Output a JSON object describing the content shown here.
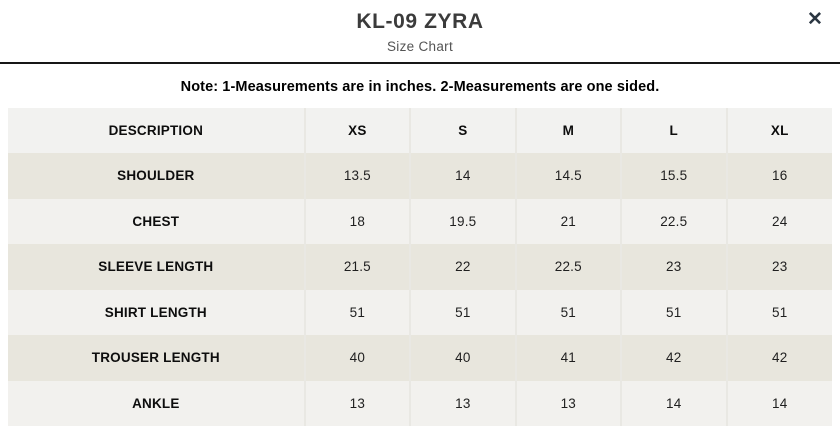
{
  "modal": {
    "title": "KL-09 ZYRA",
    "subtitle": "Size Chart",
    "close_label": "✕"
  },
  "note": "Note: 1-Measurements are in inches. 2-Measurements are one sided.",
  "table": {
    "columns": [
      "DESCRIPTION",
      "XS",
      "S",
      "M",
      "L",
      "XL"
    ],
    "rows": [
      {
        "label": "SHOULDER",
        "values": [
          "13.5",
          "14",
          "14.5",
          "15.5",
          "16"
        ]
      },
      {
        "label": "CHEST",
        "values": [
          "18",
          "19.5",
          "21",
          "22.5",
          "24"
        ]
      },
      {
        "label": "SLEEVE LENGTH",
        "values": [
          "21.5",
          "22",
          "22.5",
          "23",
          "23"
        ]
      },
      {
        "label": "SHIRT LENGTH",
        "values": [
          "51",
          "51",
          "51",
          "51",
          "51"
        ]
      },
      {
        "label": "TROUSER LENGTH",
        "values": [
          "40",
          "40",
          "41",
          "42",
          "42"
        ]
      },
      {
        "label": "ANKLE",
        "values": [
          "13",
          "13",
          "13",
          "14",
          "14"
        ]
      }
    ]
  },
  "colors": {
    "row_beige": "#e8e6dd",
    "row_light": "#f2f1ee",
    "header_row_bg": "#f2f2f0",
    "column_divider": "#e9e8e3",
    "header_rule": "#161616",
    "title_text": "#3b3b3b",
    "subtitle_text": "#545454",
    "close_icon": "#2b3642"
  }
}
